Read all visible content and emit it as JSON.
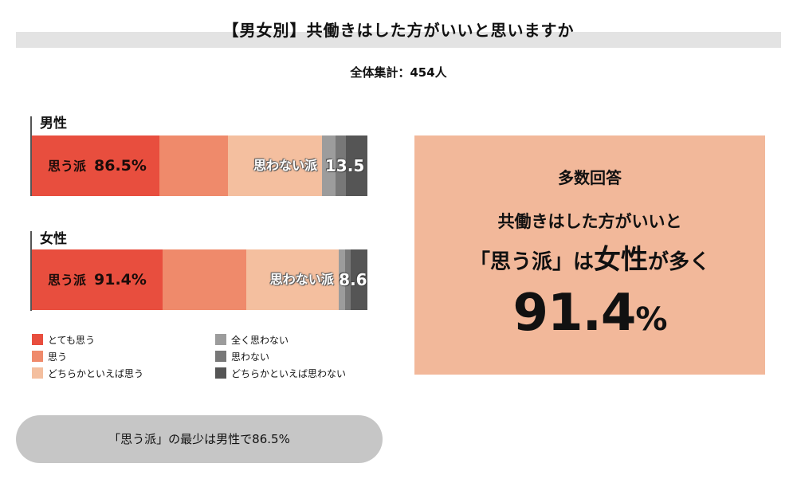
{
  "title": "【男女別】共働きはした方がいいと思いますか",
  "total": "全体集計：454人",
  "chart_data": {
    "type": "bar",
    "orientation": "horizontal",
    "stacked": true,
    "unit": "%",
    "categories": [
      "男性",
      "女性"
    ],
    "series": [
      {
        "name": "とても思う",
        "color": "#e84e3e"
      },
      {
        "name": "思う",
        "color": "#ef8a6b"
      },
      {
        "name": "どちらかといえば思う",
        "color": "#f4bf9f"
      },
      {
        "name": "全く思わない",
        "color": "#9c9c9c"
      },
      {
        "name": "思わない",
        "color": "#787878"
      },
      {
        "name": "どちらかといえば思わない",
        "color": "#555555"
      }
    ],
    "rows": [
      {
        "category": "男性",
        "values": [
          38.0,
          20.5,
          28.0,
          3.9,
          3.3,
          6.3
        ],
        "positive_label": "思う派",
        "positive_total": "86.5%",
        "negative_label": "思わない派",
        "negative_total": "13.5"
      },
      {
        "category": "女性",
        "values": [
          39.0,
          25.0,
          27.4,
          2.0,
          1.6,
          5.0
        ],
        "positive_label": "思う派",
        "positive_total": "91.4%",
        "negative_label": "思わない派",
        "negative_total": "8.6"
      }
    ],
    "legend_placement": "bottom"
  },
  "legend": [
    {
      "label": "とても思う",
      "color": "#e84e3e"
    },
    {
      "label": "思う",
      "color": "#ef8a6b"
    },
    {
      "label": "どちらかといえば思う",
      "color": "#f4bf9f"
    },
    {
      "label": "全く思わない",
      "color": "#9c9c9c"
    },
    {
      "label": "思わない",
      "color": "#787878"
    },
    {
      "label": "どちらかといえば思わない",
      "color": "#555555"
    }
  ],
  "summary": "「思う派」の最少は男性で86.5%",
  "callout": {
    "heading": "多数回答",
    "line1": "共働きはした方がいいと",
    "line2_a": "「思う派」は",
    "line2_b": "女性",
    "line2_c": "が多く",
    "pct_value": "91.4",
    "pct_unit": "%"
  },
  "colors": {
    "title_band": "#e3e3e3",
    "callout_bg": "#f2b89a",
    "pill_bg": "#c6c6c6"
  }
}
